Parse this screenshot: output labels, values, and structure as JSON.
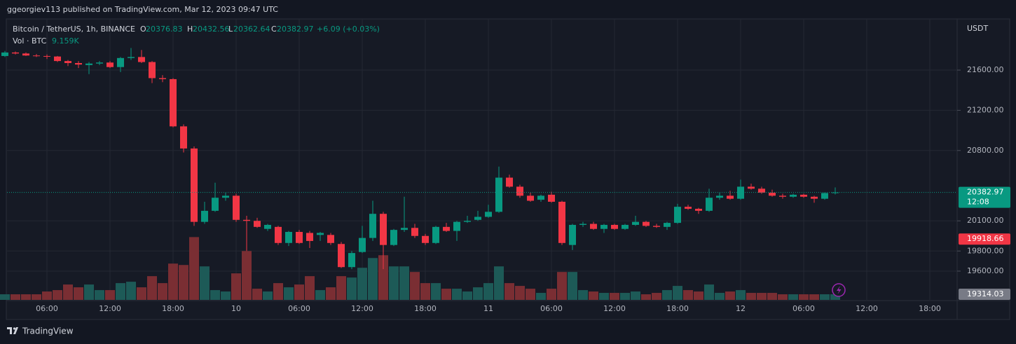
{
  "header": {
    "published": "ggeorgiev113 published on TradingView.com, Mar 12, 2023 09:47 UTC",
    "symbol": "Bitcoin / TetherUS, 1h, BINANCE",
    "o": "O",
    "h": "H",
    "l": "L",
    "c": "C",
    "change_label": "+6.09 (+0.03%)",
    "volume_title": "Vol · BTC",
    "volume_label": "9.159K",
    "currency": "USDT",
    "countdown": "12:08",
    "brand": "TradingView"
  },
  "chart_data": {
    "type": "candlestick",
    "x": [
      "2023-03-09 02:00",
      "2023-03-09 03:00",
      "2023-03-09 04:00",
      "2023-03-09 05:00",
      "2023-03-09 06:00",
      "2023-03-09 07:00",
      "2023-03-09 08:00",
      "2023-03-09 09:00",
      "2023-03-09 10:00",
      "2023-03-09 11:00",
      "2023-03-09 12:00",
      "2023-03-09 13:00",
      "2023-03-09 14:00",
      "2023-03-09 15:00",
      "2023-03-09 16:00",
      "2023-03-09 17:00",
      "2023-03-09 18:00",
      "2023-03-09 19:00",
      "2023-03-09 20:00",
      "2023-03-09 21:00",
      "2023-03-09 22:00",
      "2023-03-09 23:00",
      "2023-03-10 00:00",
      "2023-03-10 01:00",
      "2023-03-10 02:00",
      "2023-03-10 03:00",
      "2023-03-10 04:00",
      "2023-03-10 05:00",
      "2023-03-10 06:00",
      "2023-03-10 07:00",
      "2023-03-10 08:00",
      "2023-03-10 09:00",
      "2023-03-10 10:00",
      "2023-03-10 11:00",
      "2023-03-10 12:00",
      "2023-03-10 13:00",
      "2023-03-10 14:00",
      "2023-03-10 15:00",
      "2023-03-10 16:00",
      "2023-03-10 17:00",
      "2023-03-10 18:00",
      "2023-03-10 19:00",
      "2023-03-10 20:00",
      "2023-03-10 21:00",
      "2023-03-10 22:00",
      "2023-03-10 23:00",
      "2023-03-11 00:00",
      "2023-03-11 01:00",
      "2023-03-11 02:00",
      "2023-03-11 03:00",
      "2023-03-11 04:00",
      "2023-03-11 05:00",
      "2023-03-11 06:00",
      "2023-03-11 07:00",
      "2023-03-11 08:00",
      "2023-03-11 09:00",
      "2023-03-11 10:00",
      "2023-03-11 11:00",
      "2023-03-11 12:00",
      "2023-03-11 13:00",
      "2023-03-11 14:00",
      "2023-03-11 15:00",
      "2023-03-11 16:00",
      "2023-03-11 17:00",
      "2023-03-11 18:00",
      "2023-03-11 19:00",
      "2023-03-11 20:00",
      "2023-03-11 21:00",
      "2023-03-11 22:00",
      "2023-03-11 23:00",
      "2023-03-12 00:00",
      "2023-03-12 01:00",
      "2023-03-12 02:00",
      "2023-03-12 03:00",
      "2023-03-12 04:00",
      "2023-03-12 05:00",
      "2023-03-12 06:00",
      "2023-03-12 07:00",
      "2023-03-12 08:00",
      "2023-03-12 09:00"
    ],
    "open": [
      21740,
      21775,
      21765,
      21745,
      21740,
      21735,
      21690,
      21670,
      21650,
      21665,
      21675,
      21630,
      21720,
      21730,
      21680,
      21520,
      21510,
      21040,
      20820,
      20090,
      20200,
      20330,
      20350,
      20110,
      20100,
      20020,
      20040,
      19880,
      19990,
      19980,
      19960,
      19960,
      19870,
      19640,
      19790,
      19930,
      20170,
      19860,
      20010,
      20030,
      19950,
      19880,
      20040,
      20000,
      20090,
      20110,
      20140,
      20190,
      20530,
      20440,
      20350,
      20310,
      20360,
      20290,
      19860,
      20060,
      20070,
      20020,
      20060,
      20020,
      20060,
      20090,
      20050,
      20040,
      20080,
      20240,
      20220,
      20200,
      20330,
      20350,
      20320,
      20440,
      20420,
      20380,
      20350,
      20340,
      20360,
      20340,
      20320,
      20376.83
    ],
    "high": [
      21790,
      21785,
      21775,
      21760,
      21755,
      21740,
      21700,
      21690,
      21680,
      21690,
      21690,
      21730,
      21820,
      21800,
      21690,
      21550,
      21520,
      21060,
      20840,
      20290,
      20480,
      20380,
      20370,
      20150,
      20130,
      20070,
      20050,
      20000,
      20010,
      20000,
      19990,
      19980,
      19890,
      19800,
      20050,
      20300,
      20190,
      20020,
      20340,
      20070,
      19970,
      20050,
      20080,
      20100,
      20150,
      20200,
      20260,
      20640,
      20560,
      20460,
      20380,
      20360,
      20390,
      20300,
      20070,
      20090,
      20090,
      20070,
      20070,
      20070,
      20150,
      20100,
      20070,
      20090,
      20270,
      20260,
      20230,
      20420,
      20380,
      20400,
      20510,
      20470,
      20440,
      20410,
      20370,
      20370,
      20370,
      20350,
      20380,
      20432.56
    ],
    "low": [
      21730,
      21755,
      21740,
      21730,
      21710,
      21680,
      21640,
      21620,
      21560,
      21650,
      21620,
      21580,
      21700,
      21670,
      21470,
      21480,
      21030,
      20780,
      20050,
      20070,
      20190,
      20300,
      20090,
      19800,
      20030,
      20000,
      19860,
      19850,
      19870,
      19830,
      19900,
      19860,
      19630,
      19620,
      19780,
      19900,
      19620,
      19850,
      19990,
      19930,
      19860,
      19870,
      19990,
      19900,
      20080,
      20100,
      20130,
      20180,
      20430,
      20330,
      20290,
      20290,
      20280,
      19860,
      19810,
      20040,
      20010,
      19980,
      20010,
      20010,
      20050,
      20040,
      20030,
      20010,
      20070,
      20210,
      20170,
      20190,
      20310,
      20310,
      20310,
      20410,
      20370,
      20340,
      20320,
      20330,
      20330,
      20280,
      20310,
      20362.64
    ],
    "close": [
      21775,
      21765,
      21745,
      21740,
      21735,
      21690,
      21670,
      21655,
      21665,
      21675,
      21630,
      21720,
      21730,
      21680,
      21520,
      21510,
      21040,
      20820,
      20090,
      20200,
      20330,
      20350,
      20110,
      20100,
      20040,
      20060,
      19880,
      19990,
      19880,
      19900,
      19980,
      19880,
      19640,
      19780,
      19930,
      20170,
      19860,
      20010,
      20030,
      19950,
      19880,
      20040,
      20000,
      20090,
      20100,
      20140,
      20190,
      20530,
      20440,
      20350,
      20300,
      20350,
      20290,
      19880,
      20060,
      20070,
      20020,
      20060,
      20020,
      20060,
      20090,
      20050,
      20040,
      20080,
      20240,
      20220,
      20200,
      20330,
      20350,
      20320,
      20440,
      20420,
      20380,
      20350,
      20340,
      20360,
      20340,
      20320,
      20376.88,
      20382.97
    ],
    "volume": [
      9160,
      9160,
      9160,
      9160,
      13740,
      16030,
      25190,
      20610,
      25190,
      16030,
      16030,
      27480,
      29770,
      20610,
      38930,
      27480,
      59540,
      57250,
      103050,
      54960,
      16030,
      13740,
      43510,
      80150,
      18320,
      13740,
      27480,
      20610,
      25190,
      38930,
      16030,
      20610,
      38930,
      36640,
      52670,
      68700,
      73280,
      54960,
      54960,
      45800,
      27480,
      27480,
      18320,
      18320,
      13740,
      20610,
      27480,
      54960,
      27480,
      22900,
      18320,
      11450,
      18320,
      45800,
      45800,
      16030,
      13740,
      11450,
      11450,
      11450,
      13740,
      9160,
      11450,
      16030,
      22900,
      16030,
      13740,
      25190,
      11450,
      13740,
      16030,
      11450,
      11450,
      11450,
      9160,
      9160,
      9160,
      9160,
      9160,
      9159
    ],
    "up_color": "#089981",
    "down_color": "#f23645",
    "volume_up_color": "#1d5a57",
    "volume_down_color": "#7a2e33",
    "ylim": [
      19314,
      22102
    ],
    "yticks": [
      {
        "value": 21600,
        "label": "21600.00"
      },
      {
        "value": 21200,
        "label": "21200.00"
      },
      {
        "value": 20800,
        "label": "20800.00"
      },
      {
        "value": 20100,
        "label": "20100.00"
      },
      {
        "value": 19800,
        "label": "19800.00"
      },
      {
        "value": 19600,
        "label": "19600.00"
      }
    ],
    "volume_lim": [
      0,
      115000
    ],
    "xticks": [
      {
        "value": "2023-03-09 06:00",
        "label": "06:00"
      },
      {
        "value": "2023-03-09 12:00",
        "label": "12:00"
      },
      {
        "value": "2023-03-09 18:00",
        "label": "18:00"
      },
      {
        "value": "2023-03-10 00:00",
        "label": "10"
      },
      {
        "value": "2023-03-10 06:00",
        "label": "06:00"
      },
      {
        "value": "2023-03-10 12:00",
        "label": "12:00"
      },
      {
        "value": "2023-03-10 18:00",
        "label": "18:00"
      },
      {
        "value": "2023-03-11 00:00",
        "label": "11"
      },
      {
        "value": "2023-03-11 06:00",
        "label": "06:00"
      },
      {
        "value": "2023-03-11 12:00",
        "label": "12:00"
      },
      {
        "value": "2023-03-11 18:00",
        "label": "18:00"
      },
      {
        "value": "2023-03-12 00:00",
        "label": "12"
      },
      {
        "value": "2023-03-12 06:00",
        "label": "06:00"
      },
      {
        "value": "2023-03-12 12:00",
        "label": "12:00"
      },
      {
        "value": "2023-03-12 18:00",
        "label": "18:00"
      }
    ],
    "grid": true,
    "price_tags": [
      {
        "value": 19918.66,
        "color": "#f23645"
      },
      {
        "value": 19314.03,
        "color": "#787b86"
      }
    ]
  }
}
